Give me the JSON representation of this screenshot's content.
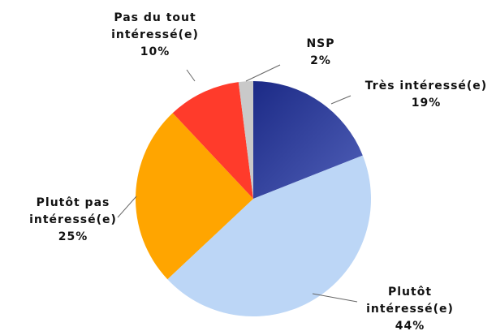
{
  "chart_data": {
    "type": "pie",
    "categories": [
      "Très intéressé(e)",
      "Plutôt intéressé(e)",
      "Plutôt pas intéressé(e)",
      "Pas du tout intéressé(e)",
      "NSP"
    ],
    "values": [
      19,
      44,
      25,
      10,
      2
    ],
    "value_labels": [
      "19%",
      "44%",
      "25%",
      "10%",
      "2%"
    ],
    "colors": [
      "#2f3d9c",
      "#bcd6f6",
      "#ffa500",
      "#ff3b2b",
      "#c9c9c9"
    ]
  }
}
